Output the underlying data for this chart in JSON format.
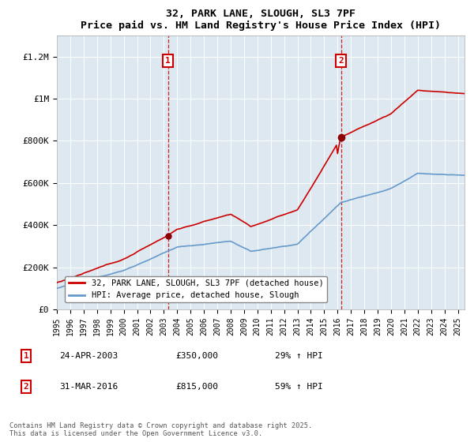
{
  "title": "32, PARK LANE, SLOUGH, SL3 7PF",
  "subtitle": "Price paid vs. HM Land Registry's House Price Index (HPI)",
  "ylabel_ticks": [
    "£0",
    "£200K",
    "£400K",
    "£600K",
    "£800K",
    "£1M",
    "£1.2M"
  ],
  "ytick_values": [
    0,
    200000,
    400000,
    600000,
    800000,
    1000000,
    1200000
  ],
  "ylim": [
    0,
    1300000
  ],
  "xlim_start": 1995,
  "xlim_end": 2025.5,
  "sale1": {
    "date_x": 2003.31,
    "price": 350000,
    "label": "1",
    "date_str": "24-APR-2003",
    "hpi_pct": "29% ↑ HPI"
  },
  "sale2": {
    "date_x": 2016.25,
    "price": 815000,
    "label": "2",
    "date_str": "31-MAR-2016",
    "hpi_pct": "59% ↑ HPI"
  },
  "legend_property": "32, PARK LANE, SLOUGH, SL3 7PF (detached house)",
  "legend_hpi": "HPI: Average price, detached house, Slough",
  "footer": "Contains HM Land Registry data © Crown copyright and database right 2025.\nThis data is licensed under the Open Government Licence v3.0.",
  "property_color": "#cc0000",
  "hpi_color": "#6699cc",
  "background_color": "#dde8f0",
  "vline_color": "#cc0000",
  "sale_marker_color": "#8b0000",
  "box_annotation_color": "#cc0000"
}
